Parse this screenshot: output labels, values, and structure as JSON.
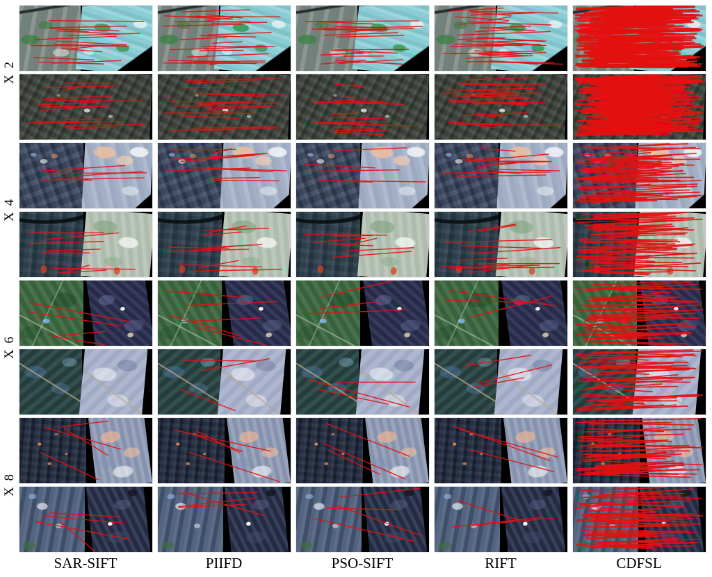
{
  "figure": {
    "description": "Qualitative comparison of feature matching results between image pairs at four scale differences; red lines are feature-match correspondences",
    "scale_labels": [
      "X 2",
      "X 4",
      "X 6",
      "X 8"
    ],
    "method_labels": [
      "SAR-SIFT",
      "PIIFD",
      "PSO-SIFT",
      "RIFT",
      "CDFSL"
    ],
    "match_line_color": "#e41111",
    "page_background": "#ffffff",
    "mask_color": "#000000",
    "rows": [
      {
        "scale": "X 2",
        "row": 1,
        "left_base": "#7e8b84",
        "right_base": "#8ccfd6"
      },
      {
        "scale": "X 2",
        "row": 2,
        "left_base": "#3c423b",
        "right_base": "#3c423b"
      },
      {
        "scale": "X 4",
        "row": 3,
        "left_base": "#3d4960",
        "right_base": "#a4b1c7"
      },
      {
        "scale": "X 4",
        "row": 4,
        "left_base": "#2f4150",
        "right_base": "#b6c2b4"
      },
      {
        "scale": "X 6",
        "row": 5,
        "left_base": "#3f6a42",
        "right_base": "#2f3354"
      },
      {
        "scale": "X 6",
        "row": 6,
        "left_base": "#2e4947",
        "right_base": "#a8b0cb"
      },
      {
        "scale": "X 8",
        "row": 7,
        "left_base": "#252e42",
        "right_base": "#8f9bb5"
      },
      {
        "scale": "X 8",
        "row": 8,
        "left_base": "#4f617d",
        "right_base": "#2c3550"
      }
    ],
    "match_counts": {
      "columns": [
        "SAR-SIFT",
        "PIIFD",
        "PSO-SIFT",
        "RIFT",
        "CDFSL"
      ],
      "rows": [
        [
          15,
          22,
          18,
          30,
          160
        ],
        [
          13,
          17,
          15,
          26,
          160
        ],
        [
          5,
          10,
          5,
          11,
          55
        ],
        [
          8,
          10,
          7,
          12,
          55
        ],
        [
          4,
          5,
          3,
          3,
          42
        ],
        [
          0,
          3,
          3,
          3,
          40
        ],
        [
          4,
          4,
          3,
          3,
          48
        ],
        [
          4,
          4,
          4,
          3,
          50
        ]
      ]
    }
  }
}
